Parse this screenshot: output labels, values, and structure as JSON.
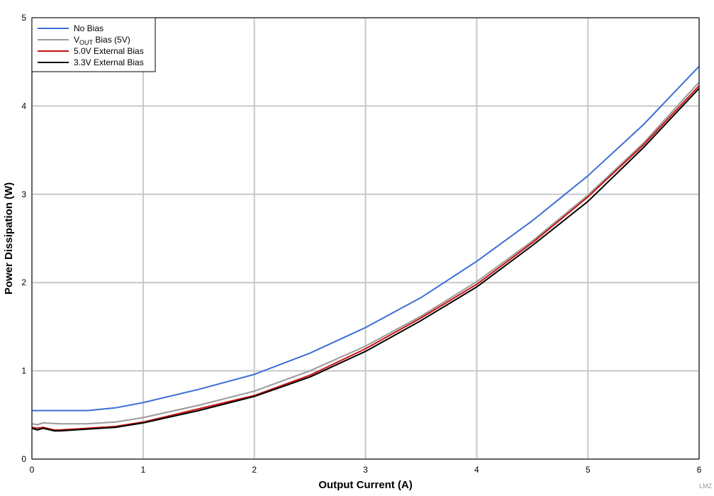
{
  "chart_data": {
    "type": "line",
    "xlabel": "Output Current (A)",
    "ylabel": "Power Dissipation (W)",
    "xlim": [
      0,
      6
    ],
    "ylim": [
      0,
      5
    ],
    "xticks": [
      0,
      1,
      2,
      3,
      4,
      5,
      6
    ],
    "yticks": [
      0,
      1,
      2,
      3,
      4,
      5
    ],
    "grid": true,
    "legend_position": "top-left",
    "series": [
      {
        "name": "No Bias",
        "legend_main": "No Bias",
        "legend_sub": "",
        "legend_rest": "",
        "color": "#3a6fd6",
        "x": [
          0,
          0.25,
          0.5,
          0.75,
          1.0,
          1.5,
          2.0,
          2.5,
          3.0,
          3.5,
          4.0,
          4.5,
          5.0,
          5.5,
          6.0
        ],
        "y": [
          0.55,
          0.55,
          0.55,
          0.58,
          0.64,
          0.79,
          0.96,
          1.2,
          1.49,
          1.83,
          2.24,
          2.7,
          3.21,
          3.79,
          4.45
        ]
      },
      {
        "name": "VOUT Bias (5V)",
        "legend_main": "V",
        "legend_sub": "OUT",
        "legend_rest": " Bias (5V)",
        "color": "#9a9a9a",
        "x": [
          0,
          0.05,
          0.1,
          0.25,
          0.5,
          0.75,
          1.0,
          1.5,
          2.0,
          2.5,
          3.0,
          3.5,
          4.0,
          4.5,
          5.0,
          5.5,
          6.0
        ],
        "y": [
          0.4,
          0.39,
          0.41,
          0.4,
          0.4,
          0.42,
          0.47,
          0.61,
          0.77,
          1.0,
          1.28,
          1.62,
          2.01,
          2.47,
          2.99,
          3.58,
          4.27
        ]
      },
      {
        "name": "5.0V External Bias",
        "legend_main": "5.0V External Bias",
        "legend_sub": "",
        "legend_rest": "",
        "color": "#cc1111",
        "x": [
          0,
          0.05,
          0.1,
          0.2,
          0.25,
          0.5,
          0.75,
          1.0,
          1.5,
          2.0,
          2.5,
          3.0,
          3.5,
          4.0,
          4.5,
          5.0,
          5.5,
          6.0
        ],
        "y": [
          0.36,
          0.35,
          0.36,
          0.33,
          0.33,
          0.35,
          0.37,
          0.42,
          0.57,
          0.72,
          0.95,
          1.25,
          1.6,
          1.98,
          2.45,
          2.97,
          3.56,
          4.23
        ]
      },
      {
        "name": "3.3V External Bias",
        "legend_main": "3.3V External Bias",
        "legend_sub": "",
        "legend_rest": "",
        "color": "#000000",
        "x": [
          0,
          0.05,
          0.1,
          0.2,
          0.25,
          0.5,
          0.75,
          1.0,
          1.5,
          2.0,
          2.5,
          3.0,
          3.5,
          4.0,
          4.5,
          5.0,
          5.5,
          6.0
        ],
        "y": [
          0.35,
          0.33,
          0.35,
          0.32,
          0.32,
          0.34,
          0.36,
          0.41,
          0.55,
          0.71,
          0.93,
          1.22,
          1.57,
          1.95,
          2.42,
          2.92,
          3.53,
          4.2
        ]
      }
    ]
  },
  "watermark": "LMZ"
}
